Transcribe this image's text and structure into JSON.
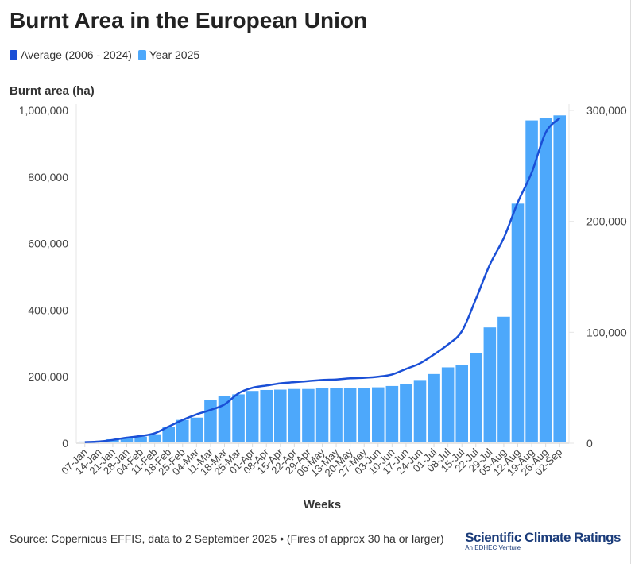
{
  "title": "Burnt Area in the European Union",
  "legend": [
    {
      "label": "Average (2006 - 2024)",
      "color": "#1a4fd6"
    },
    {
      "label": "Year 2025",
      "color": "#4da8fb"
    }
  ],
  "source": "Source: Copernicus EFFIS, data to 2 September 2025 • (Fires of approx 30 ha or larger)",
  "logo": {
    "name": "Scientific Climate Ratings",
    "tagline": "An EDHEC Venture"
  },
  "chart_data": {
    "type": "bar",
    "title": "Burnt Area in the European Union",
    "xlabel": "Weeks",
    "ylabel": "Burnt area (ha)",
    "ylim": [
      0,
      1000000
    ],
    "y2lim": [
      0,
      300000
    ],
    "yticks": [
      "0",
      "200,000",
      "400,000",
      "600,000",
      "800,000",
      "1,000,000"
    ],
    "y2ticks": [
      "0",
      "100,000",
      "200,000",
      "300,000"
    ],
    "categories": [
      "07-Jan",
      "14-Jan",
      "21-Jan",
      "28-Jan",
      "04-Feb",
      "11-Feb",
      "18-Feb",
      "25-Feb",
      "04-Mar",
      "11-Mar",
      "18-Mar",
      "25-Mar",
      "01-Apr",
      "08-Apr",
      "15-Apr",
      "22-Apr",
      "29-Apr",
      "06-May",
      "13-May",
      "20-May",
      "27-May",
      "03-Jun",
      "10-Jun",
      "17-Jun",
      "24-Jun",
      "01-Jul",
      "08-Jul",
      "15-Jul",
      "22-Jul",
      "29-Jul",
      "05-Aug",
      "12-Aug",
      "19-Aug",
      "26-Aug",
      "02-Sep"
    ],
    "series": [
      {
        "name": "Year 2025",
        "type": "bar",
        "axis": "left",
        "values": [
          5000,
          7000,
          12000,
          17000,
          20000,
          27000,
          48000,
          70000,
          77000,
          130000,
          143000,
          147000,
          157000,
          160000,
          161000,
          163000,
          163000,
          165000,
          166000,
          167000,
          167000,
          168000,
          172000,
          179000,
          190000,
          208000,
          228000,
          236000,
          270000,
          348000,
          380000,
          720000,
          970000,
          978000,
          985000
        ]
      },
      {
        "name": "Average (2006 - 2024)",
        "type": "line",
        "axis": "right",
        "values": [
          1000,
          1500,
          3000,
          5000,
          6500,
          9000,
          15000,
          21000,
          26000,
          30000,
          35000,
          45000,
          50000,
          52000,
          54000,
          55000,
          56000,
          57000,
          57500,
          58500,
          59000,
          60000,
          62000,
          67000,
          72000,
          80000,
          89000,
          101000,
          130000,
          161000,
          185000,
          217000,
          244000,
          280000,
          293000
        ]
      }
    ]
  }
}
